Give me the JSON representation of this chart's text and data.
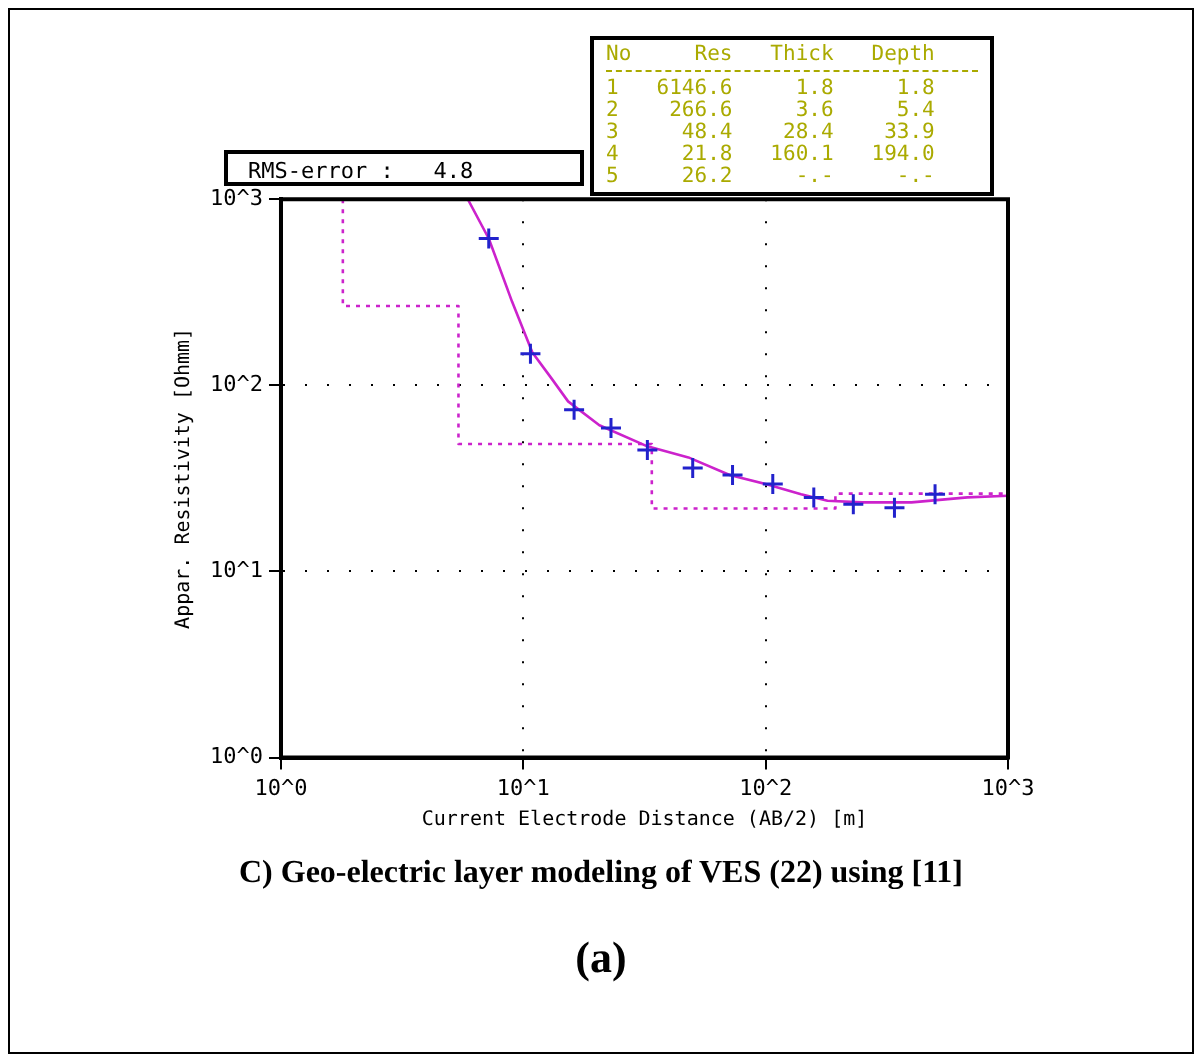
{
  "chart_data": {
    "type": "scatter",
    "annotations": [
      "RMS-error :   4.8",
      "No     Res   Thick   Depth",
      "1   6146.6     1.8     1.8",
      "2    266.6     3.6     5.4",
      "3     48.4    28.4    33.9",
      "4     21.8   160.1   194.0",
      "5     26.2     -.-     -.-",
      "C) Geo-electric layer modeling of VES (22) using [11]",
      "(a)"
    ],
    "xlabel": "Current Electrode Distance (AB/2) [m]",
    "ylabel": "Appar. Resistivity [Ohmm]",
    "log": "xy",
    "xlim": [
      1,
      1000
    ],
    "ylim": [
      1,
      1000
    ],
    "xticks": [
      {
        "value": 1,
        "label": "10^0"
      },
      {
        "value": 10,
        "label": "10^1"
      },
      {
        "value": 100,
        "label": "10^2"
      },
      {
        "value": 1000,
        "label": "10^3"
      }
    ],
    "yticks": [
      {
        "value": 1,
        "label": "10^0"
      },
      {
        "value": 10,
        "label": "10^1"
      },
      {
        "value": 100,
        "label": "10^2"
      },
      {
        "value": 1000,
        "label": "10^3"
      }
    ],
    "grid": true,
    "legend": false,
    "series": [
      {
        "color": "#2222cc",
        "marker": "cross",
        "x": [
          7.2,
          10.7,
          16.2,
          23,
          32.5,
          50,
          73,
          107,
          158,
          230,
          340,
          500
        ],
        "values": [
          615,
          148,
          74,
          59,
          45,
          36,
          33,
          29.5,
          25,
          23,
          22,
          26
        ]
      },
      {
        "type": "line",
        "color": "#cc22cc",
        "marker": "none",
        "line_style": "solid",
        "x": [
          5.9,
          7.2,
          9,
          10.9,
          13,
          15.3,
          20.6,
          32.5,
          48,
          71,
          100,
          140,
          180,
          250,
          400,
          680,
          1000
        ],
        "values": [
          1000,
          615,
          280,
          150,
          110,
          82,
          61,
          47,
          41,
          33,
          29.5,
          26,
          24,
          23.5,
          23.5,
          25,
          25.5
        ]
      },
      {
        "type": "line",
        "color": "#cc22cc",
        "marker": "none",
        "line_style": "dotted",
        "x": [
          1.8,
          1.8,
          5.4,
          5.4,
          33.9,
          33.9,
          194,
          194,
          1000
        ],
        "values": [
          1000,
          266.6,
          266.6,
          48.4,
          48.4,
          21.8,
          21.8,
          26.2,
          26.2
        ]
      }
    ]
  }
}
